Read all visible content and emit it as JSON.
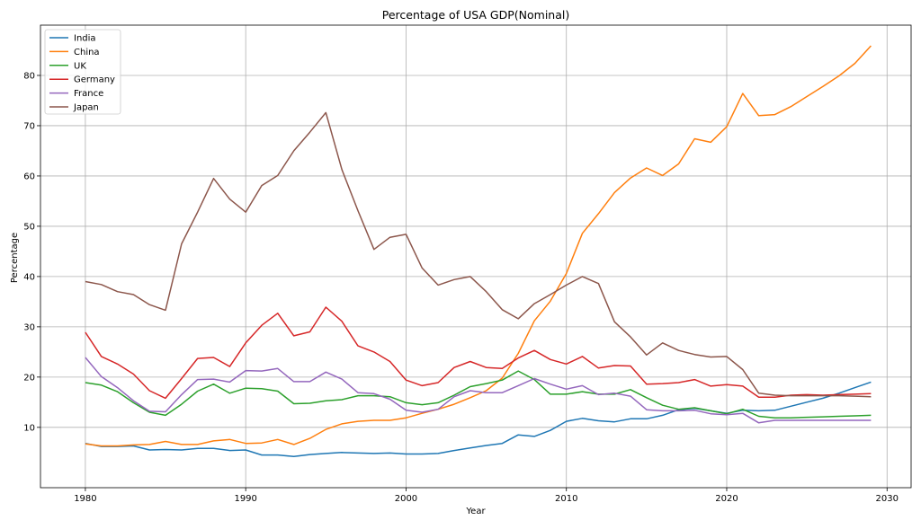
{
  "chart_data": {
    "type": "line",
    "title": "Percentage of USA GDP(Nominal)",
    "xlabel": "Year",
    "ylabel": "Percentage",
    "xlim": [
      1977.2,
      2031.5
    ],
    "ylim": [
      -2,
      90
    ],
    "xticks": [
      1980,
      1990,
      2000,
      2010,
      2020,
      2030
    ],
    "yticks": [
      10,
      20,
      30,
      40,
      50,
      60,
      70,
      80
    ],
    "grid": true,
    "legend": "top-left",
    "x": [
      1980,
      1981,
      1982,
      1983,
      1984,
      1985,
      1986,
      1987,
      1988,
      1989,
      1990,
      1991,
      1992,
      1993,
      1994,
      1995,
      1996,
      1997,
      1998,
      1999,
      2000,
      2001,
      2002,
      2003,
      2004,
      2005,
      2006,
      2007,
      2008,
      2009,
      2010,
      2011,
      2012,
      2013,
      2014,
      2015,
      2016,
      2017,
      2018,
      2019,
      2020,
      2021,
      2022,
      2023,
      2024,
      2025,
      2026,
      2027,
      2028,
      2029
    ],
    "series": [
      {
        "name": "India",
        "color": "#1f77b4",
        "values": [
          6.8,
          6.2,
          6.2,
          6.3,
          5.5,
          5.6,
          5.5,
          5.8,
          5.8,
          5.4,
          5.5,
          4.5,
          4.5,
          4.2,
          4.6,
          4.8,
          5.0,
          4.9,
          4.8,
          4.9,
          4.7,
          4.7,
          4.8,
          5.4,
          5.9,
          6.4,
          6.8,
          8.5,
          8.2,
          9.4,
          11.2,
          11.8,
          11.3,
          11.1,
          11.7,
          11.7,
          12.4,
          13.5,
          13.8,
          13.3,
          12.8,
          13.4,
          13.3,
          13.4,
          14.2,
          15.0,
          15.8,
          16.8,
          17.9,
          19.0
        ]
      },
      {
        "name": "China",
        "color": "#ff7f0e",
        "values": [
          6.7,
          6.3,
          6.3,
          6.5,
          6.6,
          7.2,
          6.6,
          6.6,
          7.3,
          7.6,
          6.8,
          6.9,
          7.6,
          6.6,
          7.8,
          9.6,
          10.7,
          11.2,
          11.4,
          11.4,
          11.9,
          12.8,
          13.6,
          14.6,
          15.9,
          17.3,
          19.8,
          24.7,
          31.2,
          35.1,
          40.6,
          48.6,
          52.5,
          56.7,
          59.6,
          61.6,
          60.1,
          62.4,
          67.4,
          66.7,
          69.8,
          76.4,
          72.0,
          72.2,
          73.8,
          75.8,
          77.8,
          79.9,
          82.4,
          85.9
        ]
      },
      {
        "name": "UK",
        "color": "#2ca02c",
        "values": [
          18.9,
          18.4,
          17.1,
          14.9,
          13.0,
          12.4,
          14.6,
          17.2,
          18.6,
          16.8,
          17.8,
          17.7,
          17.2,
          14.7,
          14.8,
          15.3,
          15.5,
          16.3,
          16.3,
          16.1,
          14.9,
          14.5,
          14.9,
          16.4,
          18.1,
          18.7,
          19.4,
          21.2,
          19.5,
          16.6,
          16.6,
          17.1,
          16.6,
          16.6,
          17.5,
          15.9,
          14.4,
          13.6,
          13.9,
          13.3,
          12.7,
          13.6,
          12.2,
          11.9,
          11.9,
          12.0,
          12.1,
          12.2,
          12.3,
          12.4
        ]
      },
      {
        "name": "Germany",
        "color": "#d62728",
        "values": [
          28.9,
          24.1,
          22.6,
          20.6,
          17.3,
          15.8,
          19.7,
          23.7,
          23.9,
          22.1,
          26.8,
          30.3,
          32.7,
          28.2,
          29.0,
          33.9,
          31.1,
          26.2,
          25.0,
          23.1,
          19.4,
          18.3,
          18.9,
          21.9,
          23.1,
          21.9,
          21.7,
          23.8,
          25.3,
          23.5,
          22.6,
          24.1,
          21.8,
          22.3,
          22.2,
          18.6,
          18.7,
          18.9,
          19.5,
          18.2,
          18.5,
          18.2,
          16.0,
          16.0,
          16.4,
          16.5,
          16.4,
          16.5,
          16.6,
          16.7
        ]
      },
      {
        "name": "France",
        "color": "#9467bd",
        "values": [
          23.9,
          20.1,
          17.9,
          15.3,
          13.2,
          13.1,
          16.5,
          19.5,
          19.6,
          19.0,
          21.3,
          21.2,
          21.7,
          19.1,
          19.1,
          21.0,
          19.6,
          16.9,
          16.7,
          15.6,
          13.4,
          13.0,
          13.6,
          16.1,
          17.3,
          16.9,
          16.9,
          18.3,
          19.7,
          18.6,
          17.6,
          18.3,
          16.5,
          16.8,
          16.2,
          13.5,
          13.3,
          13.3,
          13.4,
          12.7,
          12.5,
          12.8,
          10.9,
          11.4,
          11.4,
          11.4,
          11.4,
          11.4,
          11.4,
          11.4
        ]
      },
      {
        "name": "Japan",
        "color": "#8c564b",
        "values": [
          39.0,
          38.4,
          37.0,
          36.4,
          34.4,
          33.3,
          46.5,
          52.8,
          59.5,
          55.4,
          52.8,
          58.1,
          60.1,
          65.0,
          68.7,
          72.6,
          61.3,
          53.1,
          45.4,
          47.8,
          48.4,
          41.7,
          38.3,
          39.4,
          40.0,
          37.0,
          33.4,
          31.6,
          34.6,
          36.4,
          38.3,
          40.0,
          38.6,
          31.0,
          28.0,
          24.4,
          26.8,
          25.3,
          24.5,
          24.0,
          24.1,
          21.5,
          16.8,
          16.4,
          16.3,
          16.3,
          16.3,
          16.3,
          16.2,
          16.1
        ]
      }
    ]
  }
}
